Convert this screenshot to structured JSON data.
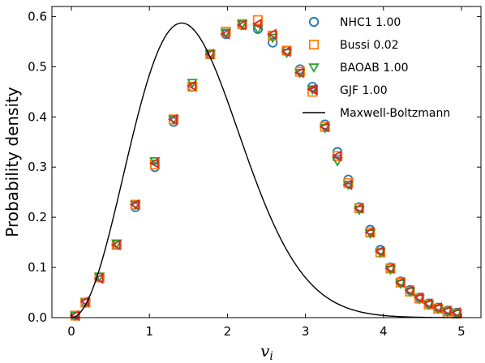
{
  "chart_data": {
    "type": "scatter",
    "title": "",
    "xlabel": "v",
    "xlabel_subscript": "i",
    "ylabel": "Probability density",
    "xlim": [
      -0.25,
      5.25
    ],
    "ylim": [
      0.0,
      0.62
    ],
    "xticks": [
      0,
      1,
      2,
      3,
      4,
      5
    ],
    "xtick_labels": [
      "0",
      "1",
      "2",
      "3",
      "4",
      "5"
    ],
    "yticks": [
      0.0,
      0.1,
      0.2,
      0.3,
      0.4,
      0.5,
      0.6
    ],
    "ytick_labels": [
      "0.0",
      "0.1",
      "0.2",
      "0.3",
      "0.4",
      "0.5",
      "0.6"
    ],
    "grid": false,
    "legend_position": "top-right",
    "series": [
      {
        "name": "NHC1 1.00",
        "marker": "circle",
        "color": "#1f77b4",
        "x": [
          0.05,
          0.18,
          0.36,
          0.58,
          0.82,
          1.07,
          1.31,
          1.55,
          1.78,
          1.98,
          2.19,
          2.39,
          2.58,
          2.76,
          2.93,
          3.09,
          3.25,
          3.41,
          3.55,
          3.69,
          3.83,
          3.96,
          4.09,
          4.22,
          4.34,
          4.46,
          4.58,
          4.7,
          4.82,
          4.94
        ],
        "y": [
          0.004,
          0.03,
          0.08,
          0.145,
          0.22,
          0.3,
          0.39,
          0.46,
          0.525,
          0.565,
          0.583,
          0.575,
          0.548,
          0.532,
          0.495,
          0.46,
          0.385,
          0.33,
          0.275,
          0.22,
          0.175,
          0.135,
          0.1,
          0.072,
          0.055,
          0.04,
          0.028,
          0.02,
          0.014,
          0.01
        ]
      },
      {
        "name": "Bussi 0.02",
        "marker": "square",
        "color": "#ff7f0e",
        "x": [
          0.05,
          0.18,
          0.36,
          0.58,
          0.82,
          1.07,
          1.31,
          1.55,
          1.78,
          1.98,
          2.19,
          2.39,
          2.58,
          2.76,
          2.93,
          3.09,
          3.25,
          3.41,
          3.55,
          3.69,
          3.83,
          3.96,
          4.09,
          4.22,
          4.34,
          4.46,
          4.58,
          4.7,
          4.82,
          4.94
        ],
        "y": [
          0.004,
          0.03,
          0.08,
          0.145,
          0.225,
          0.305,
          0.395,
          0.46,
          0.525,
          0.57,
          0.585,
          0.593,
          0.562,
          0.532,
          0.49,
          0.45,
          0.38,
          0.322,
          0.268,
          0.218,
          0.17,
          0.13,
          0.098,
          0.07,
          0.052,
          0.038,
          0.026,
          0.018,
          0.012,
          0.008
        ]
      },
      {
        "name": "BAOAB 1.00",
        "marker": "triangle-down",
        "color": "#2ca02c",
        "x": [
          0.05,
          0.18,
          0.36,
          0.58,
          0.82,
          1.07,
          1.31,
          1.55,
          1.78,
          1.98,
          2.19,
          2.39,
          2.58,
          2.76,
          2.93,
          3.09,
          3.25,
          3.41,
          3.55,
          3.69,
          3.83,
          3.96,
          4.09,
          4.22,
          4.34,
          4.46,
          4.58,
          4.7,
          4.82,
          4.94
        ],
        "y": [
          0.004,
          0.03,
          0.082,
          0.148,
          0.225,
          0.312,
          0.395,
          0.468,
          0.525,
          0.568,
          0.585,
          0.575,
          0.558,
          0.528,
          0.488,
          0.455,
          0.378,
          0.312,
          0.265,
          0.215,
          0.168,
          0.13,
          0.096,
          0.068,
          0.052,
          0.038,
          0.026,
          0.018,
          0.012,
          0.008
        ]
      },
      {
        "name": "GJF 1.00",
        "marker": "triangle-left",
        "color": "#d62728",
        "x": [
          0.05,
          0.18,
          0.36,
          0.58,
          0.82,
          1.07,
          1.31,
          1.55,
          1.78,
          1.98,
          2.19,
          2.39,
          2.58,
          2.76,
          2.93,
          3.09,
          3.25,
          3.41,
          3.55,
          3.69,
          3.83,
          3.96,
          4.09,
          4.22,
          4.34,
          4.46,
          4.58,
          4.7,
          4.82,
          4.94
        ],
        "y": [
          0.004,
          0.032,
          0.078,
          0.145,
          0.225,
          0.308,
          0.395,
          0.462,
          0.525,
          0.565,
          0.583,
          0.585,
          0.565,
          0.53,
          0.488,
          0.455,
          0.38,
          0.322,
          0.265,
          0.218,
          0.17,
          0.132,
          0.098,
          0.07,
          0.054,
          0.04,
          0.028,
          0.02,
          0.014,
          0.01
        ]
      },
      {
        "name": "Maxwell-Boltzmann",
        "marker": "line",
        "color": "#000000",
        "function": "maxwell-boltzmann-3d-unit-temperature"
      }
    ]
  }
}
